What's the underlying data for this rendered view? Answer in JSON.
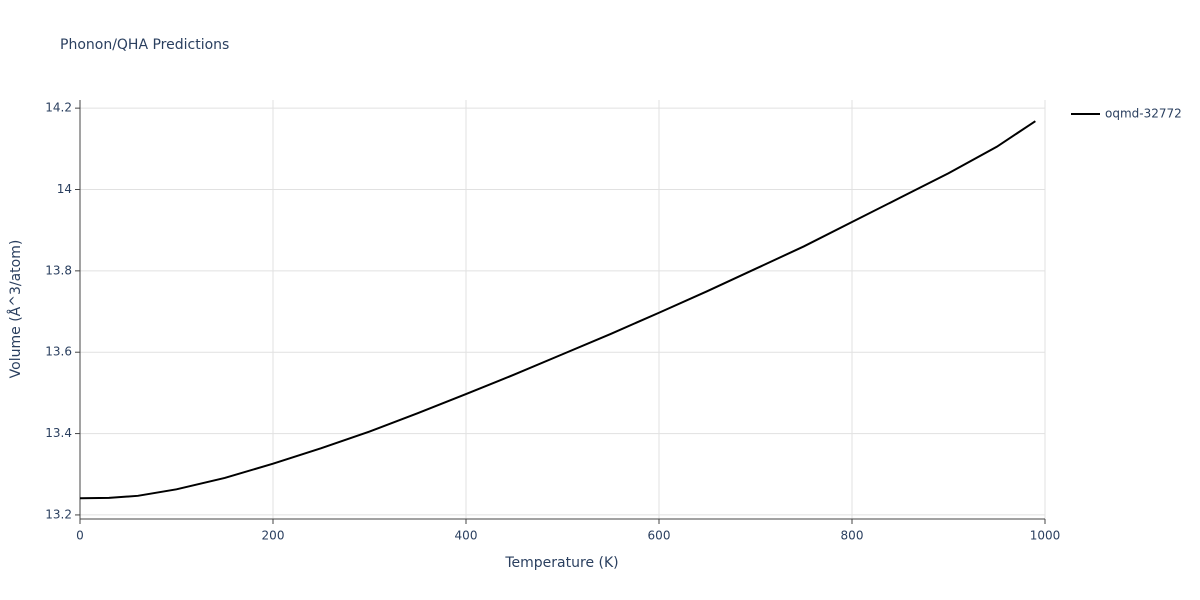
{
  "chart_data": {
    "type": "line",
    "title": "Phonon/QHA Predictions",
    "x_label": "Temperature (K)",
    "y_label": "Volume (Å^3/atom)",
    "x": [
      0,
      30,
      60,
      100,
      150,
      200,
      250,
      300,
      350,
      400,
      450,
      500,
      550,
      600,
      650,
      700,
      750,
      800,
      850,
      900,
      950,
      990
    ],
    "series": [
      {
        "name": "oqmd-32772",
        "color": "#000000",
        "values": [
          13.241,
          13.242,
          13.247,
          13.263,
          13.291,
          13.326,
          13.364,
          13.405,
          13.45,
          13.497,
          13.545,
          13.595,
          13.645,
          13.697,
          13.75,
          13.805,
          13.86,
          13.92,
          13.98,
          14.04,
          14.105,
          14.168
        ]
      }
    ],
    "xlim": [
      0,
      1000
    ],
    "xticks": [
      0,
      200,
      400,
      600,
      800,
      1000
    ],
    "ylim": [
      13.19,
      14.22
    ],
    "yticks": [
      13.2,
      13.4,
      13.6,
      13.8,
      14,
      14.2
    ],
    "grid": true,
    "legend": "right"
  }
}
